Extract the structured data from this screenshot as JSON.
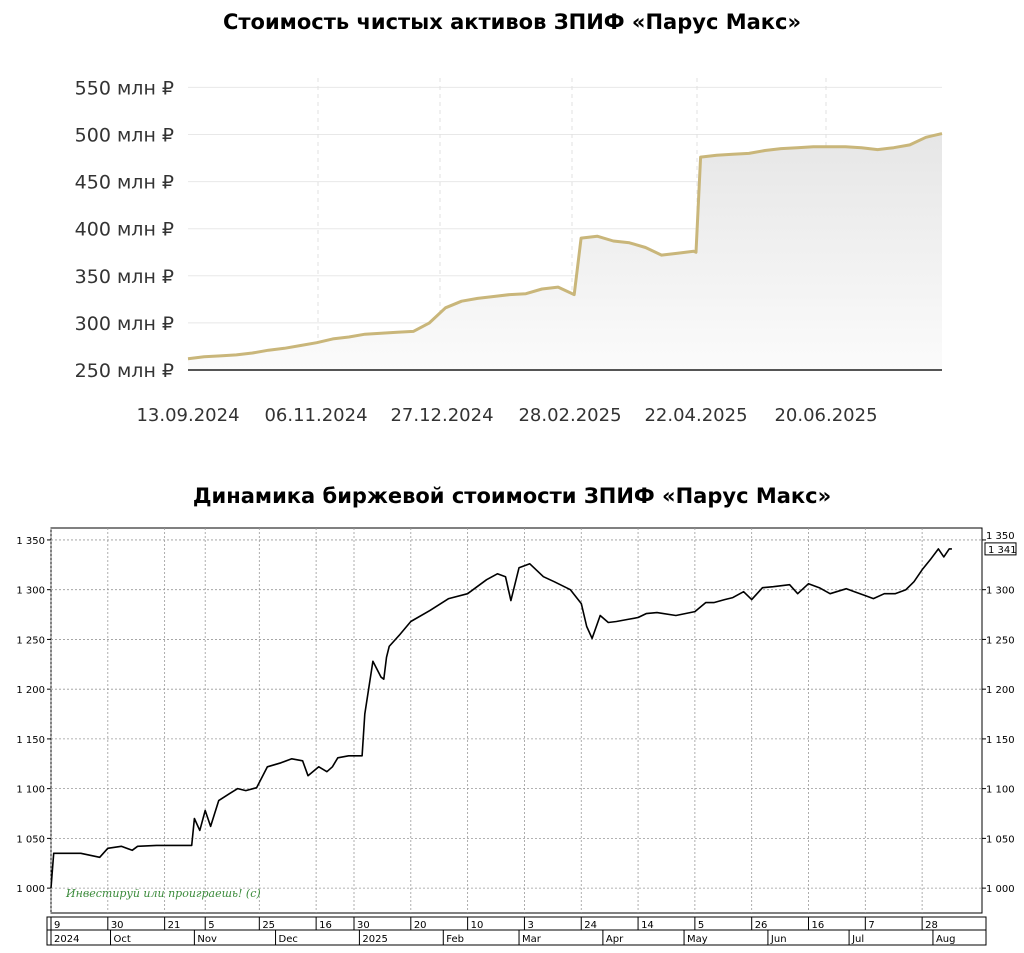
{
  "chart_data": [
    {
      "type": "area",
      "title": "Стоимость чистых активов ЗПИФ «Парус Макс»",
      "y_tick_labels": [
        "250 млн ₽",
        "300 млн ₽",
        "350 млн ₽",
        "400 млн ₽",
        "450 млн ₽",
        "500 млн ₽",
        "550 млн ₽"
      ],
      "y_ticks": [
        250,
        300,
        350,
        400,
        450,
        500,
        550
      ],
      "ylim": [
        250,
        560
      ],
      "x_tick_labels": [
        "13.09.2024",
        "06.11.2024",
        "27.12.2024",
        "28.02.2025",
        "22.04.2025",
        "20.06.2025"
      ],
      "xlim": [
        "2024-09-13",
        "2025-08-07"
      ],
      "line_color": "#c9b67a",
      "grid": true,
      "series": [
        {
          "x": [
            "2024-09-13",
            "2024-09-20",
            "2024-09-27",
            "2024-10-04",
            "2024-10-11",
            "2024-10-18",
            "2024-10-25",
            "2024-11-01",
            "2024-11-08",
            "2024-11-15",
            "2024-11-22",
            "2024-11-29",
            "2024-12-06",
            "2024-12-13",
            "2024-12-20",
            "2024-12-27",
            "2025-01-03",
            "2025-01-10",
            "2025-01-17",
            "2025-01-24",
            "2025-01-31",
            "2025-02-07",
            "2025-02-14",
            "2025-02-21",
            "2025-02-28",
            "2025-03-03",
            "2025-03-10",
            "2025-03-17",
            "2025-03-24",
            "2025-03-31",
            "2025-04-07",
            "2025-04-14",
            "2025-04-21",
            "2025-04-22",
            "2025-04-24",
            "2025-05-01",
            "2025-05-08",
            "2025-05-15",
            "2025-05-22",
            "2025-05-29",
            "2025-06-05",
            "2025-06-12",
            "2025-06-19",
            "2025-06-26",
            "2025-07-03",
            "2025-07-10",
            "2025-07-17",
            "2025-07-24",
            "2025-07-31",
            "2025-08-07"
          ],
          "values": [
            262,
            264,
            265,
            266,
            268,
            271,
            273,
            276,
            279,
            283,
            285,
            288,
            289,
            290,
            291,
            300,
            316,
            323,
            326,
            328,
            330,
            331,
            336,
            338,
            330,
            390,
            392,
            387,
            385,
            380,
            372,
            374,
            376,
            375,
            476,
            478,
            479,
            480,
            483,
            485,
            486,
            487,
            487,
            487,
            486,
            484,
            486,
            489,
            497,
            501
          ]
        }
      ]
    },
    {
      "type": "line",
      "title": "Динамика биржевой стоимости ЗПИФ «Парус Макс»",
      "y_tick_labels": [
        "1 000",
        "1 050",
        "1 100",
        "1 150",
        "1 200",
        "1 250",
        "1 300",
        "1 350"
      ],
      "y_ticks": [
        1000,
        1050,
        1100,
        1150,
        1200,
        1250,
        1300,
        1350
      ],
      "ylim": [
        975,
        1362
      ],
      "xlim": [
        "2024-09-09",
        "2025-08-11"
      ],
      "x_tick_days": [
        "9",
        "30",
        "21",
        "5",
        "25",
        "16",
        "30",
        "20",
        "10",
        "3",
        "24",
        "14",
        "5",
        "26",
        "16",
        "7",
        "28"
      ],
      "x_tick_dates": [
        "2024-09-09",
        "2024-09-30",
        "2024-10-21",
        "2024-11-05",
        "2024-11-25",
        "2024-12-16",
        "2024-12-30",
        "2025-01-20",
        "2025-02-10",
        "2025-03-03",
        "2025-03-24",
        "2025-04-14",
        "2025-05-05",
        "2025-05-26",
        "2025-06-16",
        "2025-07-07",
        "2025-07-28"
      ],
      "x_month_labels": [
        "2024",
        "Oct",
        "Nov",
        "Dec",
        "2025",
        "Feb",
        "Mar",
        "Apr",
        "May",
        "Jun",
        "Jul",
        "Aug"
      ],
      "x_month_dates": [
        "2024-09-09",
        "2024-10-01",
        "2024-11-01",
        "2024-12-01",
        "2025-01-01",
        "2025-02-01",
        "2025-03-01",
        "2025-04-01",
        "2025-05-01",
        "2025-06-01",
        "2025-07-01",
        "2025-08-01"
      ],
      "last_value_label": "1 341",
      "scale_label_top": "1 350",
      "watermark": "Инвестируй или проиграешь! (c)",
      "grid": true,
      "series": [
        {
          "x": [
            "2024-09-09",
            "2024-09-10",
            "2024-09-20",
            "2024-09-27",
            "2024-09-30",
            "2024-10-05",
            "2024-10-09",
            "2024-10-11",
            "2024-10-18",
            "2024-10-25",
            "2024-10-31",
            "2024-11-01",
            "2024-11-03",
            "2024-11-05",
            "2024-11-07",
            "2024-11-10",
            "2024-11-14",
            "2024-11-17",
            "2024-11-20",
            "2024-11-24",
            "2024-11-28",
            "2024-12-03",
            "2024-12-07",
            "2024-12-11",
            "2024-12-13",
            "2024-12-17",
            "2024-12-20",
            "2024-12-22",
            "2024-12-24",
            "2024-12-28",
            "2025-01-02",
            "2025-01-03",
            "2025-01-06",
            "2025-01-09",
            "2025-01-10",
            "2025-01-11",
            "2025-01-12",
            "2025-01-16",
            "2025-01-20",
            "2025-01-27",
            "2025-02-03",
            "2025-02-10",
            "2025-02-17",
            "2025-02-21",
            "2025-02-24",
            "2025-02-26",
            "2025-03-01",
            "2025-03-05",
            "2025-03-10",
            "2025-03-14",
            "2025-03-20",
            "2025-03-24",
            "2025-03-26",
            "2025-03-28",
            "2025-03-31",
            "2025-04-03",
            "2025-04-06",
            "2025-04-10",
            "2025-04-14",
            "2025-04-17",
            "2025-04-21",
            "2025-04-28",
            "2025-05-05",
            "2025-05-09",
            "2025-05-12",
            "2025-05-16",
            "2025-05-19",
            "2025-05-23",
            "2025-05-26",
            "2025-05-30",
            "2025-06-03",
            "2025-06-09",
            "2025-06-12",
            "2025-06-16",
            "2025-06-20",
            "2025-06-24",
            "2025-06-30",
            "2025-07-03",
            "2025-07-07",
            "2025-07-10",
            "2025-07-14",
            "2025-07-18",
            "2025-07-22",
            "2025-07-25",
            "2025-07-28",
            "2025-07-31",
            "2025-08-03",
            "2025-08-05",
            "2025-08-07",
            "2025-08-08"
          ],
          "values": [
            1000,
            1035,
            1035,
            1031,
            1040,
            1042,
            1038,
            1042,
            1043,
            1043,
            1043,
            1070,
            1058,
            1078,
            1062,
            1088,
            1095,
            1100,
            1098,
            1101,
            1122,
            1126,
            1130,
            1128,
            1113,
            1122,
            1117,
            1122,
            1131,
            1133,
            1133,
            1175,
            1228,
            1212,
            1210,
            1232,
            1243,
            1255,
            1268,
            1279,
            1291,
            1296,
            1310,
            1316,
            1313,
            1289,
            1322,
            1326,
            1313,
            1308,
            1300,
            1286,
            1263,
            1251,
            1274,
            1267,
            1268,
            1270,
            1272,
            1276,
            1277,
            1274,
            1278,
            1287,
            1287,
            1290,
            1292,
            1298,
            1290,
            1302,
            1303,
            1305,
            1296,
            1306,
            1302,
            1296,
            1301,
            1298,
            1294,
            1291,
            1296,
            1296,
            1300,
            1308,
            1320,
            1330,
            1341,
            1333,
            1341,
            1341
          ]
        }
      ]
    }
  ]
}
